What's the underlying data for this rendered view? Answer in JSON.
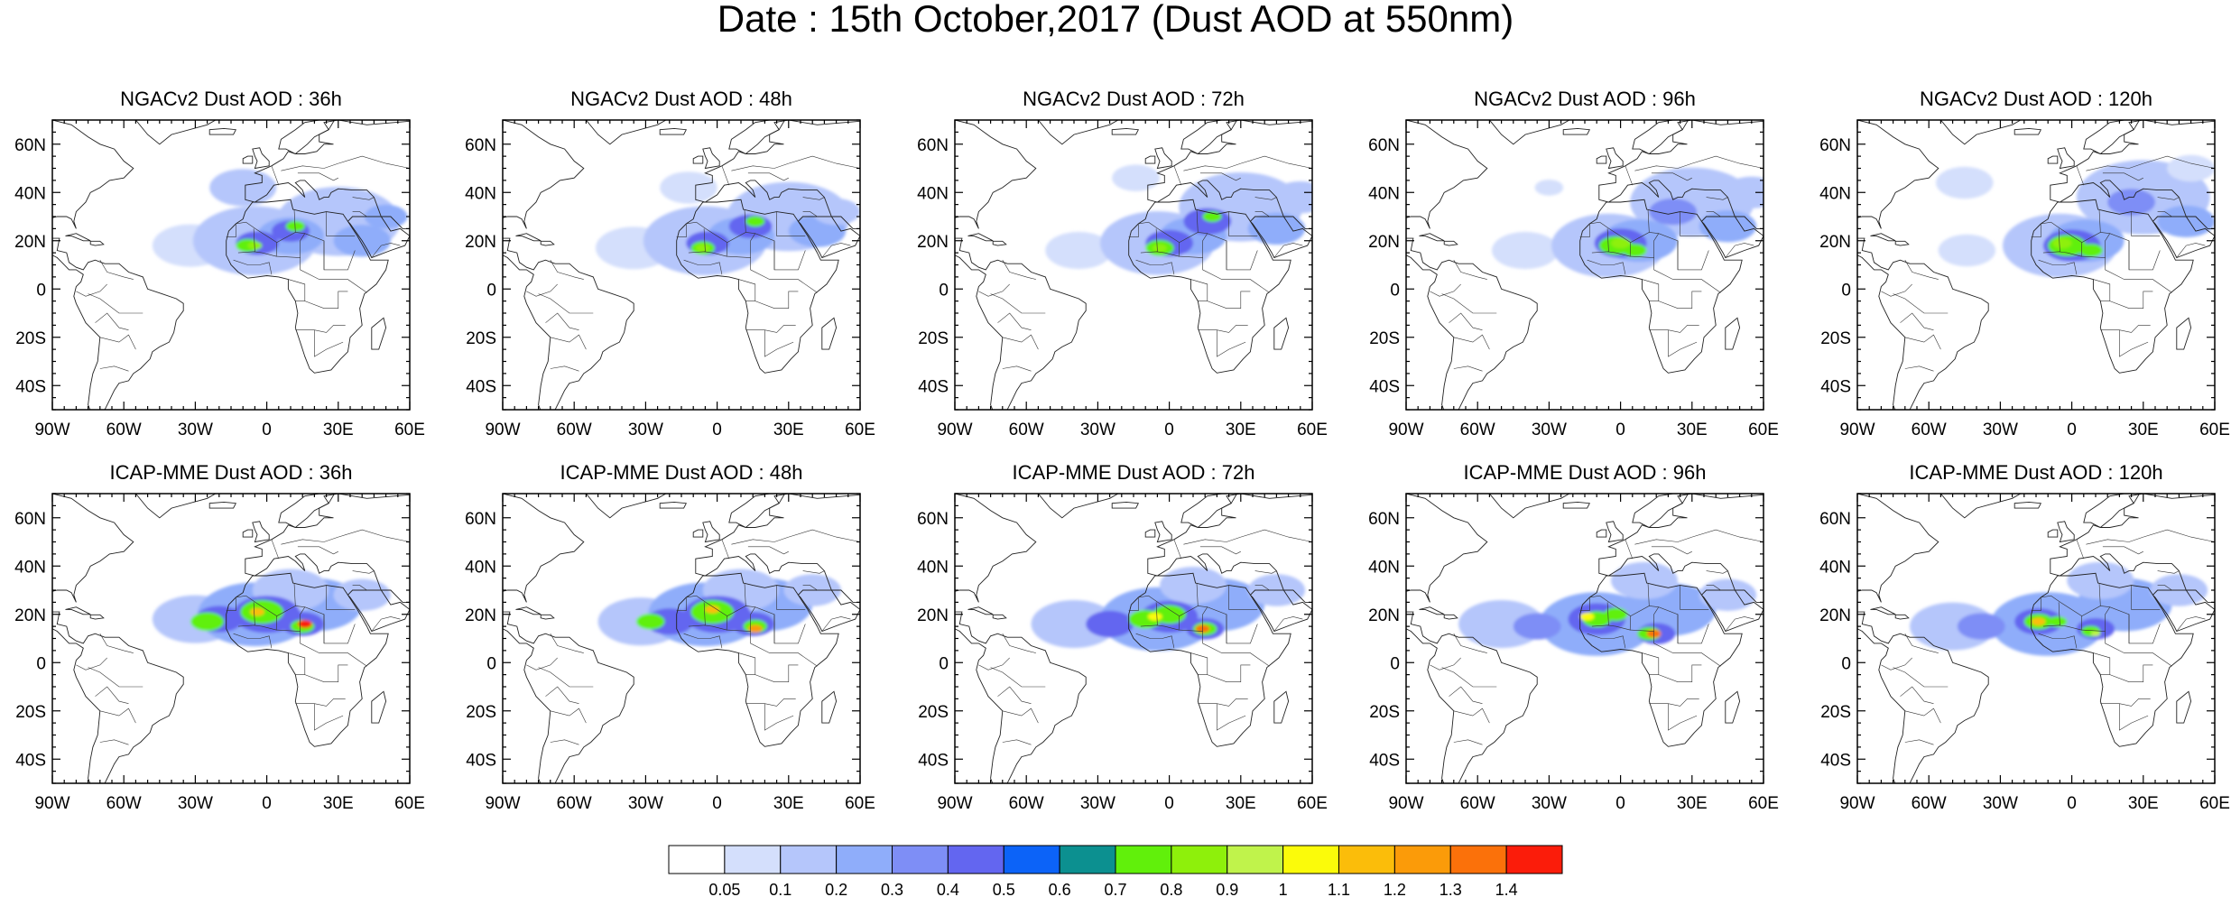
{
  "title": "Date : 15th October,2017 (Dust AOD at 550nm)",
  "map": {
    "lon_range": [
      -90,
      60
    ],
    "lat_range": [
      -50,
      70
    ],
    "lat_ticks": [
      {
        "value": 60,
        "label": "60N"
      },
      {
        "value": 40,
        "label": "40N"
      },
      {
        "value": 20,
        "label": "20N"
      },
      {
        "value": 0,
        "label": "0"
      },
      {
        "value": -20,
        "label": "20S"
      },
      {
        "value": -40,
        "label": "40S"
      }
    ],
    "lon_ticks": [
      {
        "value": -90,
        "label": "90W"
      },
      {
        "value": -60,
        "label": "60W"
      },
      {
        "value": -30,
        "label": "30W"
      },
      {
        "value": 0,
        "label": "0"
      },
      {
        "value": 30,
        "label": "30E"
      },
      {
        "value": 60,
        "label": "60E"
      }
    ]
  },
  "panels": [
    {
      "id": "ngac-36",
      "title": "NGACv2 Dust AOD : 36h",
      "model": "NGACv2",
      "lead_hours": 36
    },
    {
      "id": "ngac-48",
      "title": "NGACv2 Dust AOD : 48h",
      "model": "NGACv2",
      "lead_hours": 48
    },
    {
      "id": "ngac-72",
      "title": "NGACv2 Dust AOD : 72h",
      "model": "NGACv2",
      "lead_hours": 72
    },
    {
      "id": "ngac-96",
      "title": "NGACv2 Dust AOD : 96h",
      "model": "NGACv2",
      "lead_hours": 96
    },
    {
      "id": "ngac-120",
      "title": "NGACv2 Dust AOD : 120h",
      "model": "NGACv2",
      "lead_hours": 120
    },
    {
      "id": "icap-36",
      "title": "ICAP-MME Dust AOD : 36h",
      "model": "ICAP-MME",
      "lead_hours": 36
    },
    {
      "id": "icap-48",
      "title": "ICAP-MME Dust AOD : 48h",
      "model": "ICAP-MME",
      "lead_hours": 48
    },
    {
      "id": "icap-72",
      "title": "ICAP-MME Dust AOD : 72h",
      "model": "ICAP-MME",
      "lead_hours": 72
    },
    {
      "id": "icap-96",
      "title": "ICAP-MME Dust AOD : 96h",
      "model": "ICAP-MME",
      "lead_hours": 96
    },
    {
      "id": "icap-120",
      "title": "ICAP-MME Dust AOD : 120h",
      "model": "ICAP-MME",
      "lead_hours": 120
    }
  ],
  "colorbar": {
    "colors": [
      "#ffffff",
      "#d4dffc",
      "#b5c6fb",
      "#8fadfa",
      "#7e8ef6",
      "#6366f0",
      "#0c63f8",
      "#0c9090",
      "#61f00b",
      "#8ef00b",
      "#c0f34b",
      "#fbfb0a",
      "#fbbd0a",
      "#fb9b09",
      "#fb710a",
      "#fb1c0a"
    ],
    "labels": [
      "0.05",
      "0.1",
      "0.2",
      "0.3",
      "0.4",
      "0.5",
      "0.6",
      "0.7",
      "0.8",
      "0.9",
      "1",
      "1.1",
      "1.2",
      "1.3",
      "1.4"
    ]
  }
}
